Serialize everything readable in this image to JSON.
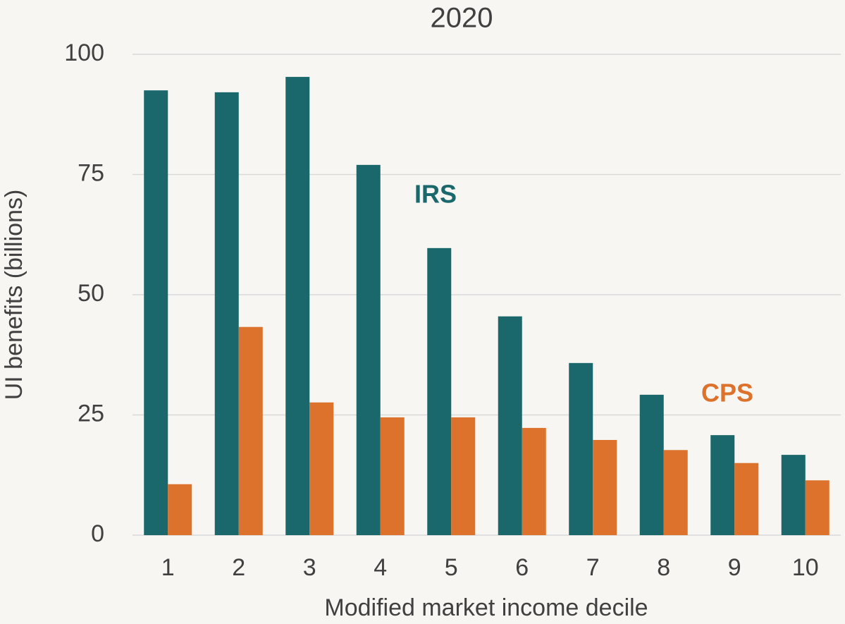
{
  "chart_data": {
    "type": "bar",
    "title": "2020",
    "x_label": "Modified market income decile",
    "y_label": "UI benefits (billions)",
    "categories": [
      "1",
      "2",
      "3",
      "4",
      "5",
      "6",
      "7",
      "8",
      "9",
      "10"
    ],
    "series": [
      {
        "name": "IRS",
        "color": "#1a686b",
        "values": [
          92.5,
          92.1,
          95.3,
          77.0,
          59.7,
          45.5,
          35.8,
          29.2,
          20.8,
          16.7
        ]
      },
      {
        "name": "CPS",
        "color": "#dc722c",
        "values": [
          10.6,
          43.3,
          27.6,
          24.5,
          24.5,
          22.3,
          19.8,
          17.7,
          15.0,
          11.4
        ]
      }
    ],
    "ylim": [
      0,
      100
    ],
    "yticks": [
      0,
      25,
      50,
      75,
      100
    ],
    "grid": true
  }
}
